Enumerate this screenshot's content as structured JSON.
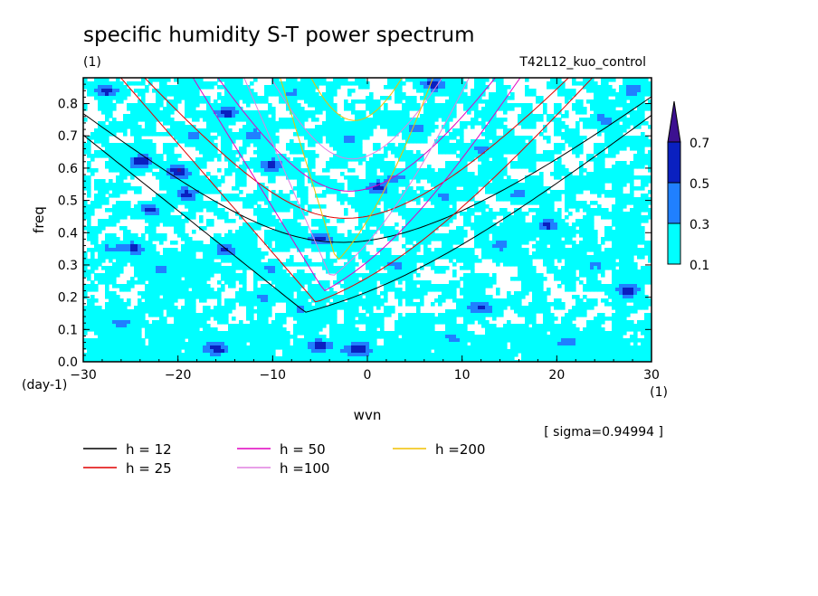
{
  "chart_data": {
    "type": "heatmap",
    "title": "specific humidity S-T power spectrum",
    "subtitle_left": "(1)",
    "subtitle_right": "T42L12_kuo_control",
    "xlabel": "wvn",
    "ylabel": "freq",
    "x_unit": "(1)",
    "y_unit": "(day-1)",
    "xlim": [
      -30,
      30
    ],
    "ylim": [
      0,
      0.88
    ],
    "x_ticks": [
      -30,
      -20,
      -10,
      0,
      10,
      20,
      30
    ],
    "y_ticks": [
      0.0,
      0.1,
      0.2,
      0.3,
      0.4,
      0.5,
      0.6,
      0.7,
      0.8
    ],
    "y_tick_labels": [
      "0.0",
      "0.1",
      "0.2",
      "0.3",
      "0.4",
      "0.5",
      "0.6",
      "0.7",
      "0.8"
    ],
    "sigma_note": "[ sigma=0.94994 ]",
    "contour_levels": [
      "0.1",
      "0.3",
      "0.5",
      "0.7"
    ],
    "colorbar": {
      "colors": [
        "#00ffff",
        "#2080ff",
        "#0a20c0",
        "#3c1090"
      ]
    },
    "spots": [
      {
        "x": -27.5,
        "y": 0.84,
        "v": 0.52
      },
      {
        "x": -24,
        "y": 0.62,
        "v": 0.55
      },
      {
        "x": -20,
        "y": 0.59,
        "v": 0.62
      },
      {
        "x": -23,
        "y": 0.47,
        "v": 0.45
      },
      {
        "x": -27,
        "y": 0.35,
        "v": 0.28
      },
      {
        "x": -24.5,
        "y": 0.35,
        "v": 0.48
      },
      {
        "x": -22,
        "y": 0.29,
        "v": 0.22
      },
      {
        "x": -19,
        "y": 0.52,
        "v": 0.5
      },
      {
        "x": -15,
        "y": 0.77,
        "v": 0.52
      },
      {
        "x": -12,
        "y": 0.7,
        "v": 0.32
      },
      {
        "x": -10,
        "y": 0.61,
        "v": 0.5
      },
      {
        "x": -15,
        "y": 0.35,
        "v": 0.46
      },
      {
        "x": -10.5,
        "y": 0.29,
        "v": 0.24
      },
      {
        "x": -11,
        "y": 0.2,
        "v": 0.26
      },
      {
        "x": -5,
        "y": 0.38,
        "v": 0.45
      },
      {
        "x": -1,
        "y": 0.04,
        "v": 0.55
      },
      {
        "x": -5,
        "y": 0.05,
        "v": 0.52
      },
      {
        "x": -16,
        "y": 0.04,
        "v": 0.46
      },
      {
        "x": 1,
        "y": 0.54,
        "v": 0.48
      },
      {
        "x": 3,
        "y": 0.57,
        "v": 0.3
      },
      {
        "x": 7,
        "y": 0.86,
        "v": 0.52
      },
      {
        "x": 5,
        "y": 0.72,
        "v": 0.3
      },
      {
        "x": 8,
        "y": 0.51,
        "v": 0.25
      },
      {
        "x": 12,
        "y": 0.17,
        "v": 0.47
      },
      {
        "x": 16,
        "y": 0.52,
        "v": 0.26
      },
      {
        "x": 19,
        "y": 0.42,
        "v": 0.46
      },
      {
        "x": 21,
        "y": 0.06,
        "v": 0.28
      },
      {
        "x": 27.5,
        "y": 0.22,
        "v": 0.52
      },
      {
        "x": 28,
        "y": 0.84,
        "v": 0.25
      },
      {
        "x": 25,
        "y": 0.75,
        "v": 0.3
      },
      {
        "x": -7,
        "y": 0.16,
        "v": 0.22
      },
      {
        "x": -8,
        "y": 0.83,
        "v": 0.24
      },
      {
        "x": 14,
        "y": 0.36,
        "v": 0.3
      },
      {
        "x": -26,
        "y": 0.12,
        "v": 0.28
      },
      {
        "x": -18,
        "y": 0.7,
        "v": 0.24
      },
      {
        "x": 3,
        "y": 0.3,
        "v": 0.23
      },
      {
        "x": 9,
        "y": 0.07,
        "v": 0.24
      },
      {
        "x": 24,
        "y": 0.3,
        "v": 0.24
      },
      {
        "x": -2,
        "y": 0.69,
        "v": 0.22
      },
      {
        "x": 12,
        "y": 0.66,
        "v": 0.24
      }
    ],
    "dispersion_lines": {
      "equivalent_depths_m": [
        12,
        25,
        50,
        100,
        200
      ],
      "meridional_modes": [
        0,
        1
      ],
      "series": [
        {
          "name": "h = 12",
          "color": "#000000"
        },
        {
          "name": "h = 25",
          "color": "#e00000"
        },
        {
          "name": "h = 50",
          "color": "#e000c0"
        },
        {
          "name": "h =100",
          "color": "#e080e0"
        },
        {
          "name": "h =200",
          "color": "#f0c000"
        }
      ]
    }
  }
}
